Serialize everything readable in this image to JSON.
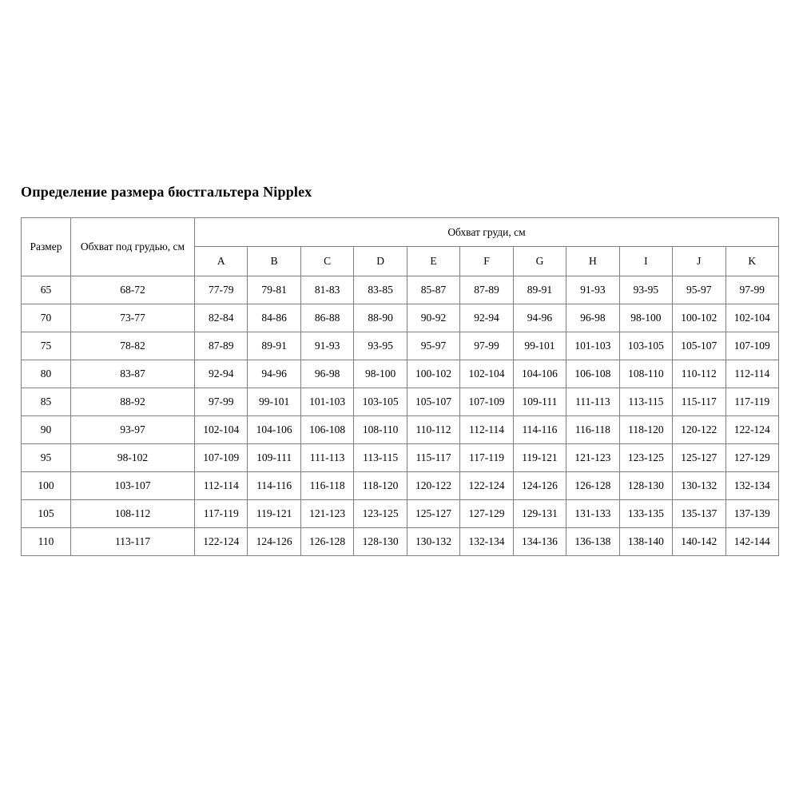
{
  "title": "Определение размера бюстгальтера Nipplex",
  "colors": {
    "border": "#808080",
    "text": "#000000",
    "background": "#ffffff"
  },
  "table": {
    "size_header": "Размер",
    "underbust_header": "Обхват под грудью, см",
    "bust_group_header": "Обхват груди, см",
    "cup_headers": [
      "A",
      "B",
      "C",
      "D",
      "E",
      "F",
      "G",
      "H",
      "I",
      "J",
      "K"
    ],
    "rows": [
      {
        "size": "65",
        "underbust": "68-72",
        "cups": [
          "77-79",
          "79-81",
          "81-83",
          "83-85",
          "85-87",
          "87-89",
          "89-91",
          "91-93",
          "93-95",
          "95-97",
          "97-99"
        ]
      },
      {
        "size": "70",
        "underbust": "73-77",
        "cups": [
          "82-84",
          "84-86",
          "86-88",
          "88-90",
          "90-92",
          "92-94",
          "94-96",
          "96-98",
          "98-100",
          "100-102",
          "102-104"
        ]
      },
      {
        "size": "75",
        "underbust": "78-82",
        "cups": [
          "87-89",
          "89-91",
          "91-93",
          "93-95",
          "95-97",
          "97-99",
          "99-101",
          "101-103",
          "103-105",
          "105-107",
          "107-109"
        ]
      },
      {
        "size": "80",
        "underbust": "83-87",
        "cups": [
          "92-94",
          "94-96",
          "96-98",
          "98-100",
          "100-102",
          "102-104",
          "104-106",
          "106-108",
          "108-110",
          "110-112",
          "112-114"
        ]
      },
      {
        "size": "85",
        "underbust": "88-92",
        "cups": [
          "97-99",
          "99-101",
          "101-103",
          "103-105",
          "105-107",
          "107-109",
          "109-111",
          "111-113",
          "113-115",
          "115-117",
          "117-119"
        ]
      },
      {
        "size": "90",
        "underbust": "93-97",
        "cups": [
          "102-104",
          "104-106",
          "106-108",
          "108-110",
          "110-112",
          "112-114",
          "114-116",
          "116-118",
          "118-120",
          "120-122",
          "122-124"
        ]
      },
      {
        "size": "95",
        "underbust": "98-102",
        "cups": [
          "107-109",
          "109-111",
          "111-113",
          "113-115",
          "115-117",
          "117-119",
          "119-121",
          "121-123",
          "123-125",
          "125-127",
          "127-129"
        ]
      },
      {
        "size": "100",
        "underbust": "103-107",
        "cups": [
          "112-114",
          "114-116",
          "116-118",
          "118-120",
          "120-122",
          "122-124",
          "124-126",
          "126-128",
          "128-130",
          "130-132",
          "132-134"
        ]
      },
      {
        "size": "105",
        "underbust": "108-112",
        "cups": [
          "117-119",
          "119-121",
          "121-123",
          "123-125",
          "125-127",
          "127-129",
          "129-131",
          "131-133",
          "133-135",
          "135-137",
          "137-139"
        ]
      },
      {
        "size": "110",
        "underbust": "113-117",
        "cups": [
          "122-124",
          "124-126",
          "126-128",
          "128-130",
          "130-132",
          "132-134",
          "134-136",
          "136-138",
          "138-140",
          "140-142",
          "142-144"
        ]
      }
    ]
  }
}
